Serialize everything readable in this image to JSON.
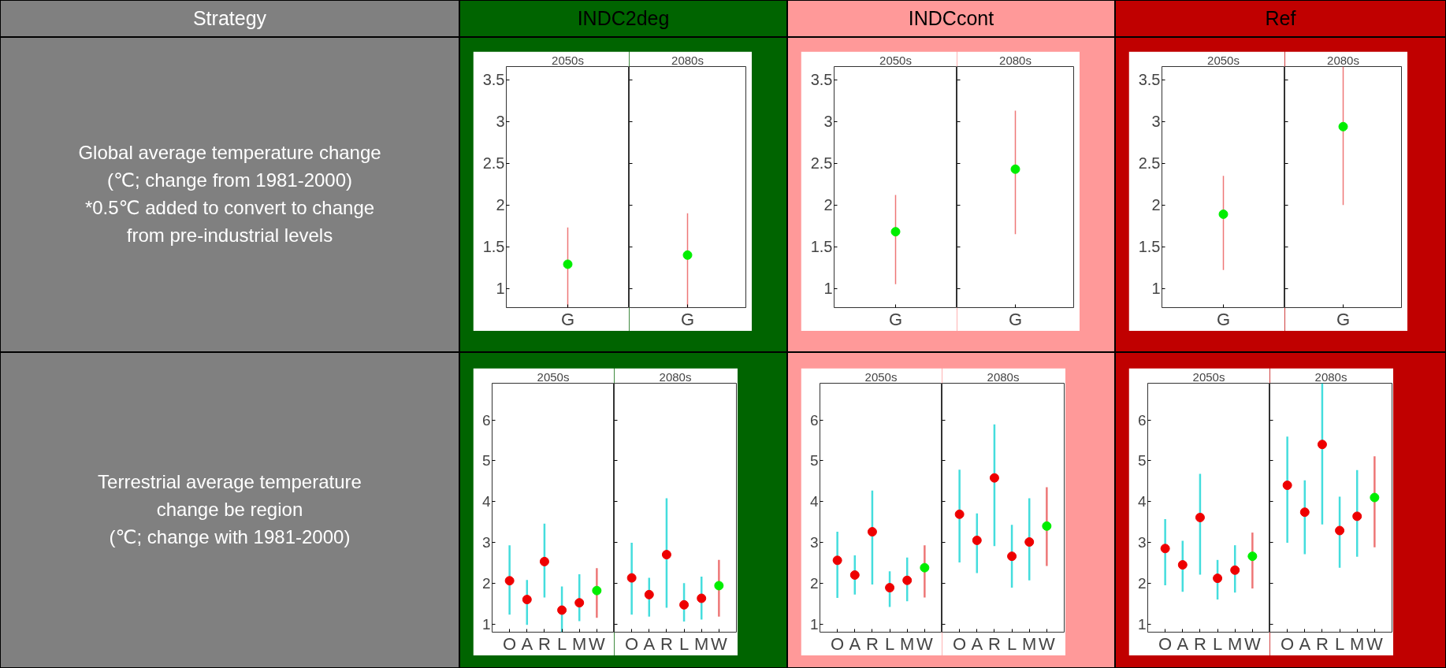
{
  "chart_data": [
    {
      "type": "scatter",
      "title": "2050s",
      "categories": [
        "G"
      ],
      "values": [
        1.29
      ],
      "colors": [
        "#00ee00"
      ],
      "errors": [
        [
          0.77,
          1.73
        ]
      ],
      "ylim": [
        0.77,
        3.66
      ],
      "yticks": [
        1,
        1.5,
        2,
        2.5,
        3,
        3.5
      ],
      "marker": "circle"
    },
    {
      "type": "scatter",
      "title": "2080s",
      "categories": [
        "G"
      ],
      "values": [
        1.4
      ],
      "colors": [
        "#00ee00"
      ],
      "errors": [
        [
          0.77,
          1.9
        ]
      ],
      "ylim": [
        0.77,
        3.66
      ],
      "yticks": [
        1,
        1.5,
        2,
        2.5,
        3,
        3.5
      ],
      "marker": "circle",
      "tick_labels": "x"
    },
    {
      "type": "scatter",
      "title": "2050s",
      "categories": [
        "G"
      ],
      "values": [
        1.68
      ],
      "colors": [
        "#00ee00"
      ],
      "errors": [
        [
          1.05,
          2.12
        ]
      ],
      "ylim": [
        0.77,
        3.66
      ],
      "yticks": [
        1,
        1.5,
        2,
        2.5,
        3,
        3.5
      ],
      "marker": "circle"
    },
    {
      "type": "scatter",
      "title": "2080s",
      "categories": [
        "G"
      ],
      "values": [
        2.43
      ],
      "colors": [
        "#00ee00"
      ],
      "errors": [
        [
          1.65,
          3.13
        ]
      ],
      "ylim": [
        0.77,
        3.66
      ],
      "yticks": [
        1,
        1.5,
        2,
        2.5,
        3,
        3.5
      ],
      "marker": "circle",
      "tick_labels": "x"
    },
    {
      "type": "scatter",
      "title": "2050s",
      "categories": [
        "G"
      ],
      "values": [
        1.89
      ],
      "colors": [
        "#00ee00"
      ],
      "errors": [
        [
          1.22,
          2.35
        ]
      ],
      "ylim": [
        0.77,
        3.66
      ],
      "yticks": [
        1,
        1.5,
        2,
        2.5,
        3,
        3.5
      ],
      "marker": "circle"
    },
    {
      "type": "scatter",
      "title": "2080s",
      "categories": [
        "G"
      ],
      "values": [
        2.94
      ],
      "colors": [
        "#00ee00"
      ],
      "errors": [
        [
          2.0,
          3.66
        ]
      ],
      "ylim": [
        0.77,
        3.66
      ],
      "yticks": [
        1,
        1.5,
        2,
        2.5,
        3,
        3.5
      ],
      "marker": "circle",
      "tick_labels": "x"
    },
    {
      "type": "scatter",
      "title": "2050s",
      "categories": [
        "O",
        "A",
        "R",
        "L",
        "M",
        "W"
      ],
      "values": [
        2.06,
        1.6,
        2.53,
        1.34,
        1.52,
        1.82
      ],
      "colors": [
        "#ee0000",
        "#ee0000",
        "#ee0000",
        "#ee0000",
        "#ee0000",
        "#00ee00"
      ],
      "errors": [
        [
          1.23,
          2.93
        ],
        [
          0.98,
          2.08
        ],
        [
          1.65,
          3.46
        ],
        [
          0.8,
          1.92
        ],
        [
          1.07,
          2.22
        ],
        [
          1.15,
          2.37
        ]
      ],
      "ylim": [
        0.8,
        6.9
      ],
      "yticks": [
        1,
        2,
        3,
        4,
        5,
        6
      ],
      "marker": "circle"
    },
    {
      "type": "scatter",
      "title": "2080s",
      "categories": [
        "O",
        "A",
        "R",
        "L",
        "M",
        "W"
      ],
      "values": [
        2.13,
        1.72,
        2.7,
        1.47,
        1.63,
        1.94
      ],
      "colors": [
        "#ee0000",
        "#ee0000",
        "#ee0000",
        "#ee0000",
        "#ee0000",
        "#00ee00"
      ],
      "errors": [
        [
          1.23,
          2.99
        ],
        [
          1.18,
          2.13
        ],
        [
          1.4,
          4.08
        ],
        [
          1.06,
          2.0
        ],
        [
          1.11,
          2.16
        ],
        [
          1.18,
          2.57
        ]
      ],
      "ylim": [
        0.8,
        6.9
      ],
      "yticks": [
        1,
        2,
        3,
        4,
        5,
        6
      ],
      "marker": "circle",
      "tick_labels": "x"
    },
    {
      "type": "scatter",
      "title": "2050s",
      "categories": [
        "O",
        "A",
        "R",
        "L",
        "M",
        "W"
      ],
      "values": [
        2.56,
        2.2,
        3.26,
        1.89,
        2.07,
        2.38
      ],
      "colors": [
        "#ee0000",
        "#ee0000",
        "#ee0000",
        "#ee0000",
        "#ee0000",
        "#00ee00"
      ],
      "errors": [
        [
          1.64,
          3.26
        ],
        [
          1.72,
          2.68
        ],
        [
          1.97,
          4.27
        ],
        [
          1.42,
          2.29
        ],
        [
          1.56,
          2.63
        ],
        [
          1.65,
          2.93
        ]
      ],
      "ylim": [
        0.8,
        6.9
      ],
      "yticks": [
        1,
        2,
        3,
        4,
        5,
        6
      ],
      "marker": "circle"
    },
    {
      "type": "scatter",
      "title": "2080s",
      "categories": [
        "O",
        "A",
        "R",
        "L",
        "M",
        "W"
      ],
      "values": [
        3.69,
        3.05,
        4.58,
        2.66,
        3.01,
        3.4
      ],
      "colors": [
        "#ee0000",
        "#ee0000",
        "#ee0000",
        "#ee0000",
        "#ee0000",
        "#00ee00"
      ],
      "errors": [
        [
          2.51,
          4.78
        ],
        [
          2.25,
          3.71
        ],
        [
          2.91,
          5.89
        ],
        [
          1.89,
          3.43
        ],
        [
          2.07,
          4.08
        ],
        [
          2.42,
          4.35
        ]
      ],
      "ylim": [
        0.8,
        6.9
      ],
      "yticks": [
        1,
        2,
        3,
        4,
        5,
        6
      ],
      "marker": "circle",
      "tick_labels": "x"
    },
    {
      "type": "scatter",
      "title": "2050s",
      "categories": [
        "O",
        "A",
        "R",
        "L",
        "M",
        "W"
      ],
      "values": [
        2.85,
        2.45,
        3.61,
        2.12,
        2.32,
        2.66
      ],
      "colors": [
        "#ee0000",
        "#ee0000",
        "#ee0000",
        "#ee0000",
        "#ee0000",
        "#00ee00"
      ],
      "errors": [
        [
          1.95,
          3.57
        ],
        [
          1.79,
          3.04
        ],
        [
          2.21,
          4.68
        ],
        [
          1.6,
          2.57
        ],
        [
          1.77,
          2.93
        ],
        [
          1.87,
          3.24
        ]
      ],
      "ylim": [
        0.8,
        6.9
      ],
      "yticks": [
        1,
        2,
        3,
        4,
        5,
        6
      ],
      "marker": "circle"
    },
    {
      "type": "scatter",
      "title": "2080s",
      "categories": [
        "O",
        "A",
        "R",
        "L",
        "M",
        "W"
      ],
      "values": [
        4.4,
        3.74,
        5.4,
        3.29,
        3.64,
        4.1
      ],
      "colors": [
        "#ee0000",
        "#ee0000",
        "#ee0000",
        "#ee0000",
        "#ee0000",
        "#00ee00"
      ],
      "errors": [
        [
          2.99,
          5.59
        ],
        [
          2.71,
          4.52
        ],
        [
          3.44,
          6.9
        ],
        [
          2.38,
          4.12
        ],
        [
          2.65,
          4.77
        ],
        [
          2.88,
          5.11
        ]
      ],
      "ylim": [
        0.8,
        6.9
      ],
      "yticks": [
        1,
        2,
        3,
        4,
        5,
        6
      ],
      "marker": "circle",
      "tick_labels": "x"
    },
    {
      "type": "other",
      "annotations": [
        "Strategy",
        "INDC2deg",
        "INDCcont",
        "Ref",
        "Global average temperature change\n(℃; change from 1981-2000)\n*0.5℃ added to convert to change\nfrom pre-industrial levels",
        "Terrestrial average temperature\nchange be region\n(℃; change with 1981-2000)"
      ]
    }
  ]
}
